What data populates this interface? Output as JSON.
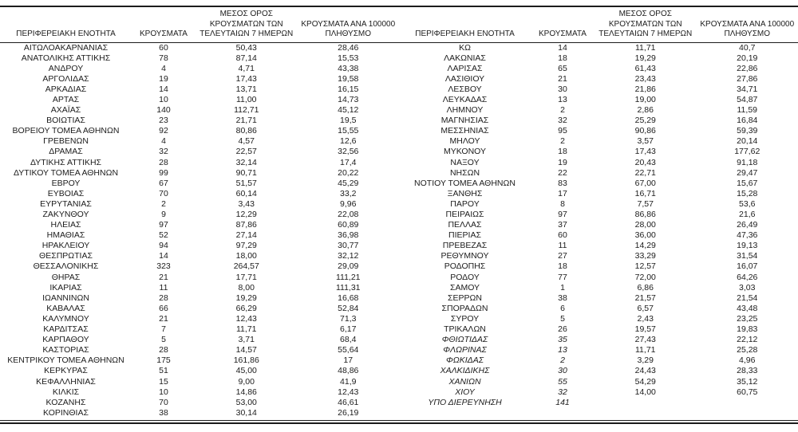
{
  "headers": {
    "region": "ΠΕΡΙΦΕΡΕΙΑΚΗ ΕΝΟΤΗΤΑ",
    "cases": "ΚΡΟΥΣΜΑΤΑ",
    "avg7_line1": "ΜΕΣΟΣ ΟΡΟΣ",
    "avg7_line2": "ΚΡΟΥΣΜΑΤΩΝ ΤΩΝ",
    "avg7_line3": "ΤΕΛΕΥΤΑΙΩΝ 7 ΗΜΕΡΩΝ",
    "per100k_line1": "ΚΡΟΥΣΜΑΤΑ ΑΝΑ 100000",
    "per100k_line2": "ΠΛΗΘΥΣΜΟ"
  },
  "left_table": {
    "rows": [
      {
        "name": "ΑΙΤΩΛΟΑΚΑΡΝΑΝΙΑΣ",
        "cases": "60",
        "avg7": "50,43",
        "per100k": "28,46",
        "italic": false
      },
      {
        "name": "ΑΝΑΤΟΛΙΚΗΣ ΑΤΤΙΚΗΣ",
        "cases": "78",
        "avg7": "87,14",
        "per100k": "15,53",
        "italic": false
      },
      {
        "name": "ΑΝΔΡΟΥ",
        "cases": "4",
        "avg7": "4,71",
        "per100k": "43,38",
        "italic": false
      },
      {
        "name": "ΑΡΓΟΛΙΔΑΣ",
        "cases": "19",
        "avg7": "17,43",
        "per100k": "19,58",
        "italic": false
      },
      {
        "name": "ΑΡΚΑΔΙΑΣ",
        "cases": "14",
        "avg7": "13,71",
        "per100k": "16,15",
        "italic": false
      },
      {
        "name": "ΑΡΤΑΣ",
        "cases": "10",
        "avg7": "11,00",
        "per100k": "14,73",
        "italic": false
      },
      {
        "name": "ΑΧΑΪΑΣ",
        "cases": "140",
        "avg7": "112,71",
        "per100k": "45,12",
        "italic": false
      },
      {
        "name": "ΒΟΙΩΤΙΑΣ",
        "cases": "23",
        "avg7": "21,71",
        "per100k": "19,5",
        "italic": false
      },
      {
        "name": "ΒΟΡΕΙΟΥ ΤΟΜΕΑ ΑΘΗΝΩΝ",
        "cases": "92",
        "avg7": "80,86",
        "per100k": "15,55",
        "italic": false
      },
      {
        "name": "ΓΡΕΒΕΝΩΝ",
        "cases": "4",
        "avg7": "4,57",
        "per100k": "12,6",
        "italic": false
      },
      {
        "name": "ΔΡΑΜΑΣ",
        "cases": "32",
        "avg7": "22,57",
        "per100k": "32,56",
        "italic": false
      },
      {
        "name": "ΔΥΤΙΚΗΣ ΑΤΤΙΚΗΣ",
        "cases": "28",
        "avg7": "32,14",
        "per100k": "17,4",
        "italic": false
      },
      {
        "name": "ΔΥΤΙΚΟΥ ΤΟΜΕΑ ΑΘΗΝΩΝ",
        "cases": "99",
        "avg7": "90,71",
        "per100k": "20,22",
        "italic": false
      },
      {
        "name": "ΕΒΡΟΥ",
        "cases": "67",
        "avg7": "51,57",
        "per100k": "45,29",
        "italic": false
      },
      {
        "name": "ΕΥΒΟΙΑΣ",
        "cases": "70",
        "avg7": "60,14",
        "per100k": "33,2",
        "italic": false
      },
      {
        "name": "ΕΥΡΥΤΑΝΙΑΣ",
        "cases": "2",
        "avg7": "3,43",
        "per100k": "9,96",
        "italic": false
      },
      {
        "name": "ΖΑΚΥΝΘΟΥ",
        "cases": "9",
        "avg7": "12,29",
        "per100k": "22,08",
        "italic": false
      },
      {
        "name": "ΗΛΕΙΑΣ",
        "cases": "97",
        "avg7": "87,86",
        "per100k": "60,89",
        "italic": false
      },
      {
        "name": "ΗΜΑΘΙΑΣ",
        "cases": "52",
        "avg7": "27,14",
        "per100k": "36,98",
        "italic": false
      },
      {
        "name": "ΗΡΑΚΛΕΙΟΥ",
        "cases": "94",
        "avg7": "97,29",
        "per100k": "30,77",
        "italic": false
      },
      {
        "name": "ΘΕΣΠΡΩΤΙΑΣ",
        "cases": "14",
        "avg7": "18,00",
        "per100k": "32,12",
        "italic": false
      },
      {
        "name": "ΘΕΣΣΑΛΟΝΙΚΗΣ",
        "cases": "323",
        "avg7": "264,57",
        "per100k": "29,09",
        "italic": false
      },
      {
        "name": "ΘΗΡΑΣ",
        "cases": "21",
        "avg7": "17,71",
        "per100k": "111,21",
        "italic": false
      },
      {
        "name": "ΙΚΑΡΙΑΣ",
        "cases": "11",
        "avg7": "8,00",
        "per100k": "111,31",
        "italic": false
      },
      {
        "name": "ΙΩΑΝΝΙΝΩΝ",
        "cases": "28",
        "avg7": "19,29",
        "per100k": "16,68",
        "italic": false
      },
      {
        "name": "ΚΑΒΑΛΑΣ",
        "cases": "66",
        "avg7": "66,29",
        "per100k": "52,84",
        "italic": false
      },
      {
        "name": "ΚΑΛΥΜΝΟΥ",
        "cases": "21",
        "avg7": "12,43",
        "per100k": "71,3",
        "italic": false
      },
      {
        "name": "ΚΑΡΔΙΤΣΑΣ",
        "cases": "7",
        "avg7": "11,71",
        "per100k": "6,17",
        "italic": false
      },
      {
        "name": "ΚΑΡΠΑΘΟΥ",
        "cases": "5",
        "avg7": "3,71",
        "per100k": "68,4",
        "italic": false
      },
      {
        "name": "ΚΑΣΤΟΡΙΑΣ",
        "cases": "28",
        "avg7": "14,57",
        "per100k": "55,64",
        "italic": false
      },
      {
        "name": "ΚΕΝΤΡΙΚΟΥ ΤΟΜΕΑ ΑΘΗΝΩΝ",
        "cases": "175",
        "avg7": "161,86",
        "per100k": "17",
        "italic": false
      },
      {
        "name": "ΚΕΡΚΥΡΑΣ",
        "cases": "51",
        "avg7": "45,00",
        "per100k": "48,86",
        "italic": false
      },
      {
        "name": "ΚΕΦΑΛΛΗΝΙΑΣ",
        "cases": "15",
        "avg7": "9,00",
        "per100k": "41,9",
        "italic": false
      },
      {
        "name": "ΚΙΛΚΙΣ",
        "cases": "10",
        "avg7": "14,86",
        "per100k": "12,43",
        "italic": false
      },
      {
        "name": "ΚΟΖΑΝΗΣ",
        "cases": "70",
        "avg7": "53,00",
        "per100k": "46,61",
        "italic": false
      },
      {
        "name": "ΚΟΡΙΝΘΙΑΣ",
        "cases": "38",
        "avg7": "30,14",
        "per100k": "26,19",
        "italic": false
      }
    ]
  },
  "right_table": {
    "rows": [
      {
        "name": "ΚΩ",
        "cases": "14",
        "avg7": "11,71",
        "per100k": "40,7",
        "italic": false
      },
      {
        "name": "ΛΑΚΩΝΙΑΣ",
        "cases": "18",
        "avg7": "19,29",
        "per100k": "20,19",
        "italic": false
      },
      {
        "name": "ΛΑΡΙΣΑΣ",
        "cases": "65",
        "avg7": "61,43",
        "per100k": "22,86",
        "italic": false
      },
      {
        "name": "ΛΑΣΙΘΙΟΥ",
        "cases": "21",
        "avg7": "23,43",
        "per100k": "27,86",
        "italic": false
      },
      {
        "name": "ΛΕΣΒΟΥ",
        "cases": "30",
        "avg7": "21,86",
        "per100k": "34,71",
        "italic": false
      },
      {
        "name": "ΛΕΥΚΑΔΑΣ",
        "cases": "13",
        "avg7": "19,00",
        "per100k": "54,87",
        "italic": false
      },
      {
        "name": "ΛΗΜΝΟΥ",
        "cases": "2",
        "avg7": "2,86",
        "per100k": "11,59",
        "italic": false
      },
      {
        "name": "ΜΑΓΝΗΣΙΑΣ",
        "cases": "32",
        "avg7": "25,29",
        "per100k": "16,84",
        "italic": false
      },
      {
        "name": "ΜΕΣΣΗΝΙΑΣ",
        "cases": "95",
        "avg7": "90,86",
        "per100k": "59,39",
        "italic": false
      },
      {
        "name": "ΜΗΛΟΥ",
        "cases": "2",
        "avg7": "3,57",
        "per100k": "20,14",
        "italic": false
      },
      {
        "name": "ΜΥΚΟΝΟΥ",
        "cases": "18",
        "avg7": "17,43",
        "per100k": "177,62",
        "italic": false
      },
      {
        "name": "ΝΑΞΟΥ",
        "cases": "19",
        "avg7": "20,43",
        "per100k": "91,18",
        "italic": false
      },
      {
        "name": "ΝΗΣΩΝ",
        "cases": "22",
        "avg7": "22,71",
        "per100k": "29,47",
        "italic": false
      },
      {
        "name": "ΝΟΤΙΟΥ ΤΟΜΕΑ ΑΘΗΝΩΝ",
        "cases": "83",
        "avg7": "67,00",
        "per100k": "15,67",
        "italic": false
      },
      {
        "name": "ΞΑΝΘΗΣ",
        "cases": "17",
        "avg7": "16,71",
        "per100k": "15,28",
        "italic": false
      },
      {
        "name": "ΠΑΡΟΥ",
        "cases": "8",
        "avg7": "7,57",
        "per100k": "53,6",
        "italic": false
      },
      {
        "name": "ΠΕΙΡΑΙΩΣ",
        "cases": "97",
        "avg7": "86,86",
        "per100k": "21,6",
        "italic": false
      },
      {
        "name": "ΠΕΛΛΑΣ",
        "cases": "37",
        "avg7": "28,00",
        "per100k": "26,49",
        "italic": false
      },
      {
        "name": "ΠΙΕΡΙΑΣ",
        "cases": "60",
        "avg7": "36,00",
        "per100k": "47,36",
        "italic": false
      },
      {
        "name": "ΠΡΕΒΕΖΑΣ",
        "cases": "11",
        "avg7": "14,29",
        "per100k": "19,13",
        "italic": false
      },
      {
        "name": "ΡΕΘΥΜΝΟΥ",
        "cases": "27",
        "avg7": "33,29",
        "per100k": "31,54",
        "italic": false
      },
      {
        "name": "ΡΟΔΟΠΗΣ",
        "cases": "18",
        "avg7": "12,57",
        "per100k": "16,07",
        "italic": false
      },
      {
        "name": "ΡΟΔΟΥ",
        "cases": "77",
        "avg7": "72,00",
        "per100k": "64,26",
        "italic": false
      },
      {
        "name": "ΣΑΜΟΥ",
        "cases": "1",
        "avg7": "6,86",
        "per100k": "3,03",
        "italic": false
      },
      {
        "name": "ΣΕΡΡΩΝ",
        "cases": "38",
        "avg7": "21,57",
        "per100k": "21,54",
        "italic": false
      },
      {
        "name": "ΣΠΟΡΑΔΩΝ",
        "cases": "6",
        "avg7": "6,57",
        "per100k": "43,48",
        "italic": false
      },
      {
        "name": "ΣΥΡΟΥ",
        "cases": "5",
        "avg7": "2,43",
        "per100k": "23,25",
        "italic": false
      },
      {
        "name": "ΤΡΙΚΑΛΩΝ",
        "cases": "26",
        "avg7": "19,57",
        "per100k": "19,83",
        "italic": false
      },
      {
        "name": "ΦΘΙΩΤΙΔΑΣ",
        "cases": "35",
        "avg7": "27,43",
        "per100k": "22,12",
        "italic": true
      },
      {
        "name": "ΦΛΩΡΙΝΑΣ",
        "cases": "13",
        "avg7": "11,71",
        "per100k": "25,28",
        "italic": true
      },
      {
        "name": "ΦΩΚΙΔΑΣ",
        "cases": "2",
        "avg7": "3,29",
        "per100k": "4,96",
        "italic": true
      },
      {
        "name": "ΧΑΛΚΙΔΙΚΗΣ",
        "cases": "30",
        "avg7": "24,43",
        "per100k": "28,33",
        "italic": true
      },
      {
        "name": "ΧΑΝΙΩΝ",
        "cases": "55",
        "avg7": "54,29",
        "per100k": "35,12",
        "italic": true
      },
      {
        "name": "ΧΙΟΥ",
        "cases": "32",
        "avg7": "14,00",
        "per100k": "60,75",
        "italic": true
      },
      {
        "name": "ΥΠΟ ΔΙΕΡΕΥΝΗΣΗ",
        "cases": "141",
        "avg7": "",
        "per100k": "",
        "italic": true
      }
    ]
  },
  "colors": {
    "text": "#1c1c1c",
    "rule": "#1c1c1c",
    "background": "#ffffff"
  }
}
